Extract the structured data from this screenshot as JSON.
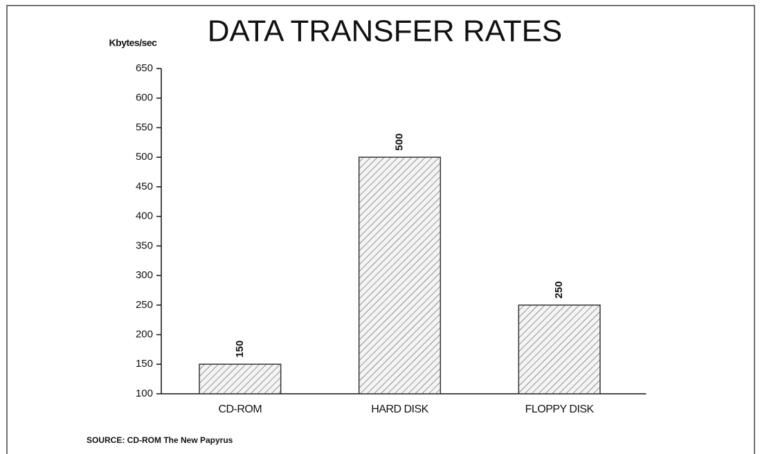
{
  "chart_data": {
    "type": "bar",
    "title": "DATA TRANSFER RATES",
    "y_label": "Kbytes/sec",
    "categories": [
      "CD-ROM",
      "HARD DISK",
      "FLOPPY DISK"
    ],
    "values": [
      150,
      500,
      250
    ],
    "color": "#333333",
    "ylim": [
      100,
      650
    ],
    "yticks": [
      100,
      150,
      200,
      250,
      300,
      350,
      400,
      450,
      500,
      550,
      600,
      650
    ],
    "grid": false,
    "source": "SOURCE: CD-ROM The New Papyrus"
  }
}
